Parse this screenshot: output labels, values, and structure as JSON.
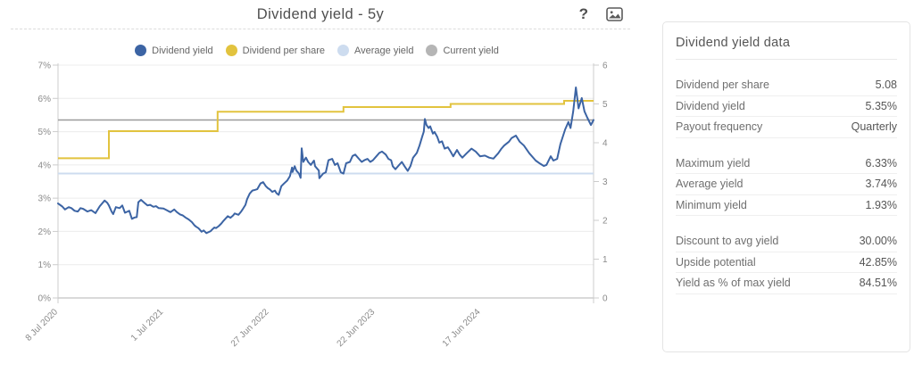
{
  "header": {
    "title": "Dividend yield - 5y",
    "help_glyph": "?"
  },
  "legend": [
    {
      "label": "Dividend yield",
      "color": "#3c64a4"
    },
    {
      "label": "Dividend per share",
      "color": "#e2c33e"
    },
    {
      "label": "Average yield",
      "color": "#cddcef"
    },
    {
      "label": "Current yield",
      "color": "#b5b5b5"
    }
  ],
  "chart_data": {
    "type": "line",
    "title": "Dividend yield - 5y",
    "grid": "horizontal",
    "legend_position": "top-center",
    "left_axis": {
      "min": 0,
      "max": 7,
      "tick_labels": [
        "0%",
        "1%",
        "2%",
        "3%",
        "4%",
        "5%",
        "6%",
        "7%"
      ]
    },
    "right_axis": {
      "min": 0,
      "max": 6,
      "tick_labels": [
        "0",
        "1",
        "2",
        "3",
        "4",
        "5",
        "6"
      ]
    },
    "x_axis": {
      "labels": [
        "8 Jul 2020",
        "1 Jul 2021",
        "27 Jun 2022",
        "22 Jun 2023",
        "17 Jun 2024"
      ],
      "fractions": [
        0,
        0.197,
        0.394,
        0.592,
        0.789
      ]
    },
    "series": [
      {
        "name": "Average yield",
        "type": "hline",
        "axis": "left",
        "value": 3.74,
        "color": "#cddcef",
        "width": 2
      },
      {
        "name": "Current yield",
        "type": "hline",
        "axis": "left",
        "value": 5.35,
        "color": "#9b9b9b",
        "width": 1.5
      },
      {
        "name": "Dividend per share",
        "type": "step",
        "axis": "right",
        "color": "#e2c33e",
        "width": 2,
        "points": [
          [
            0,
            3.6
          ],
          [
            0.095,
            4.3
          ],
          [
            0.298,
            4.8
          ],
          [
            0.533,
            4.92
          ],
          [
            0.733,
            5.0
          ],
          [
            0.945,
            5.08
          ]
        ]
      },
      {
        "name": "Dividend yield",
        "type": "line",
        "axis": "left",
        "color": "#3c64a4",
        "width": 2,
        "points": [
          [
            0.0,
            2.84
          ],
          [
            0.008,
            2.75
          ],
          [
            0.013,
            2.66
          ],
          [
            0.02,
            2.73
          ],
          [
            0.025,
            2.7
          ],
          [
            0.031,
            2.62
          ],
          [
            0.037,
            2.6
          ],
          [
            0.042,
            2.7
          ],
          [
            0.047,
            2.68
          ],
          [
            0.055,
            2.6
          ],
          [
            0.062,
            2.64
          ],
          [
            0.07,
            2.55
          ],
          [
            0.078,
            2.76
          ],
          [
            0.087,
            2.93
          ],
          [
            0.092,
            2.86
          ],
          [
            0.095,
            2.78
          ],
          [
            0.1,
            2.6
          ],
          [
            0.103,
            2.52
          ],
          [
            0.108,
            2.73
          ],
          [
            0.115,
            2.7
          ],
          [
            0.12,
            2.78
          ],
          [
            0.125,
            2.56
          ],
          [
            0.13,
            2.6
          ],
          [
            0.133,
            2.62
          ],
          [
            0.138,
            2.38
          ],
          [
            0.143,
            2.42
          ],
          [
            0.147,
            2.43
          ],
          [
            0.15,
            2.88
          ],
          [
            0.155,
            2.95
          ],
          [
            0.162,
            2.85
          ],
          [
            0.167,
            2.78
          ],
          [
            0.172,
            2.8
          ],
          [
            0.178,
            2.74
          ],
          [
            0.183,
            2.76
          ],
          [
            0.188,
            2.7
          ],
          [
            0.197,
            2.69
          ],
          [
            0.205,
            2.62
          ],
          [
            0.21,
            2.58
          ],
          [
            0.217,
            2.66
          ],
          [
            0.222,
            2.58
          ],
          [
            0.228,
            2.51
          ],
          [
            0.233,
            2.48
          ],
          [
            0.238,
            2.42
          ],
          [
            0.244,
            2.36
          ],
          [
            0.25,
            2.28
          ],
          [
            0.255,
            2.18
          ],
          [
            0.258,
            2.14
          ],
          [
            0.262,
            2.1
          ],
          [
            0.265,
            2.05
          ],
          [
            0.268,
            1.99
          ],
          [
            0.272,
            2.03
          ],
          [
            0.277,
            1.95
          ],
          [
            0.28,
            1.97
          ],
          [
            0.285,
            2.01
          ],
          [
            0.288,
            2.06
          ],
          [
            0.292,
            2.12
          ],
          [
            0.295,
            2.1
          ],
          [
            0.3,
            2.16
          ],
          [
            0.305,
            2.24
          ],
          [
            0.308,
            2.3
          ],
          [
            0.312,
            2.37
          ],
          [
            0.317,
            2.46
          ],
          [
            0.322,
            2.41
          ],
          [
            0.327,
            2.48
          ],
          [
            0.33,
            2.54
          ],
          [
            0.337,
            2.5
          ],
          [
            0.342,
            2.6
          ],
          [
            0.345,
            2.67
          ],
          [
            0.35,
            2.8
          ],
          [
            0.353,
            2.97
          ],
          [
            0.358,
            3.14
          ],
          [
            0.363,
            3.23
          ],
          [
            0.368,
            3.25
          ],
          [
            0.372,
            3.27
          ],
          [
            0.378,
            3.44
          ],
          [
            0.383,
            3.48
          ],
          [
            0.388,
            3.36
          ],
          [
            0.392,
            3.3
          ],
          [
            0.395,
            3.27
          ],
          [
            0.4,
            3.19
          ],
          [
            0.405,
            3.23
          ],
          [
            0.408,
            3.15
          ],
          [
            0.412,
            3.1
          ],
          [
            0.417,
            3.36
          ],
          [
            0.422,
            3.44
          ],
          [
            0.428,
            3.53
          ],
          [
            0.433,
            3.66
          ],
          [
            0.437,
            3.92
          ],
          [
            0.438,
            3.79
          ],
          [
            0.442,
            3.96
          ],
          [
            0.445,
            3.83
          ],
          [
            0.45,
            3.74
          ],
          [
            0.453,
            3.61
          ],
          [
            0.455,
            4.5
          ],
          [
            0.458,
            4.09
          ],
          [
            0.463,
            4.22
          ],
          [
            0.467,
            4.09
          ],
          [
            0.472,
            4.0
          ],
          [
            0.478,
            4.13
          ],
          [
            0.48,
            3.96
          ],
          [
            0.487,
            3.83
          ],
          [
            0.488,
            3.6
          ],
          [
            0.495,
            3.74
          ],
          [
            0.5,
            3.78
          ],
          [
            0.505,
            4.14
          ],
          [
            0.512,
            4.18
          ],
          [
            0.517,
            4.0
          ],
          [
            0.522,
            4.05
          ],
          [
            0.528,
            3.78
          ],
          [
            0.533,
            3.74
          ],
          [
            0.538,
            4.05
          ],
          [
            0.545,
            4.09
          ],
          [
            0.55,
            4.27
          ],
          [
            0.555,
            4.31
          ],
          [
            0.562,
            4.18
          ],
          [
            0.567,
            4.09
          ],
          [
            0.572,
            4.14
          ],
          [
            0.578,
            4.18
          ],
          [
            0.583,
            4.09
          ],
          [
            0.588,
            4.14
          ],
          [
            0.595,
            4.27
          ],
          [
            0.6,
            4.36
          ],
          [
            0.605,
            4.4
          ],
          [
            0.612,
            4.31
          ],
          [
            0.617,
            4.18
          ],
          [
            0.622,
            4.14
          ],
          [
            0.625,
            3.96
          ],
          [
            0.63,
            3.87
          ],
          [
            0.637,
            4.0
          ],
          [
            0.642,
            4.09
          ],
          [
            0.647,
            3.96
          ],
          [
            0.653,
            3.82
          ],
          [
            0.658,
            3.96
          ],
          [
            0.663,
            4.22
          ],
          [
            0.67,
            4.36
          ],
          [
            0.675,
            4.58
          ],
          [
            0.68,
            4.85
          ],
          [
            0.683,
            5.0
          ],
          [
            0.685,
            5.38
          ],
          [
            0.688,
            5.2
          ],
          [
            0.692,
            5.11
          ],
          [
            0.695,
            5.16
          ],
          [
            0.7,
            4.94
          ],
          [
            0.703,
            4.99
          ],
          [
            0.708,
            4.85
          ],
          [
            0.712,
            4.67
          ],
          [
            0.717,
            4.71
          ],
          [
            0.722,
            4.49
          ],
          [
            0.728,
            4.53
          ],
          [
            0.733,
            4.4
          ],
          [
            0.738,
            4.26
          ],
          [
            0.745,
            4.45
          ],
          [
            0.75,
            4.31
          ],
          [
            0.755,
            4.22
          ],
          [
            0.763,
            4.35
          ],
          [
            0.772,
            4.49
          ],
          [
            0.78,
            4.4
          ],
          [
            0.788,
            4.26
          ],
          [
            0.797,
            4.28
          ],
          [
            0.805,
            4.22
          ],
          [
            0.813,
            4.19
          ],
          [
            0.822,
            4.35
          ],
          [
            0.828,
            4.49
          ],
          [
            0.833,
            4.58
          ],
          [
            0.842,
            4.7
          ],
          [
            0.847,
            4.81
          ],
          [
            0.855,
            4.88
          ],
          [
            0.862,
            4.7
          ],
          [
            0.87,
            4.58
          ],
          [
            0.88,
            4.35
          ],
          [
            0.892,
            4.13
          ],
          [
            0.9,
            4.04
          ],
          [
            0.907,
            3.97
          ],
          [
            0.912,
            4.0
          ],
          [
            0.92,
            4.26
          ],
          [
            0.925,
            4.13
          ],
          [
            0.932,
            4.18
          ],
          [
            0.938,
            4.62
          ],
          [
            0.947,
            5.07
          ],
          [
            0.953,
            5.29
          ],
          [
            0.957,
            5.11
          ],
          [
            0.962,
            5.61
          ],
          [
            0.967,
            6.33
          ],
          [
            0.972,
            5.7
          ],
          [
            0.978,
            6.01
          ],
          [
            0.983,
            5.61
          ],
          [
            0.988,
            5.43
          ],
          [
            0.995,
            5.2
          ],
          [
            1.0,
            5.35
          ]
        ]
      }
    ]
  },
  "panel": {
    "title": "Dividend yield data",
    "groups": [
      [
        {
          "label": "Dividend per share",
          "value": "5.08"
        },
        {
          "label": "Dividend yield",
          "value": "5.35%"
        },
        {
          "label": "Payout frequency",
          "value": "Quarterly"
        }
      ],
      [
        {
          "label": "Maximum yield",
          "value": "6.33%"
        },
        {
          "label": "Average yield",
          "value": "3.74%"
        },
        {
          "label": "Minimum yield",
          "value": "1.93%"
        }
      ],
      [
        {
          "label": "Discount to avg yield",
          "value": "30.00%"
        },
        {
          "label": "Upside potential",
          "value": "42.85%"
        },
        {
          "label": "Yield as % of max yield",
          "value": "84.51%"
        }
      ]
    ]
  },
  "colors": {
    "grid": "#ececec",
    "axis_line": "#b3b3b3",
    "axis_side": "#cccccc",
    "axis_text": "#8a8a8a"
  }
}
